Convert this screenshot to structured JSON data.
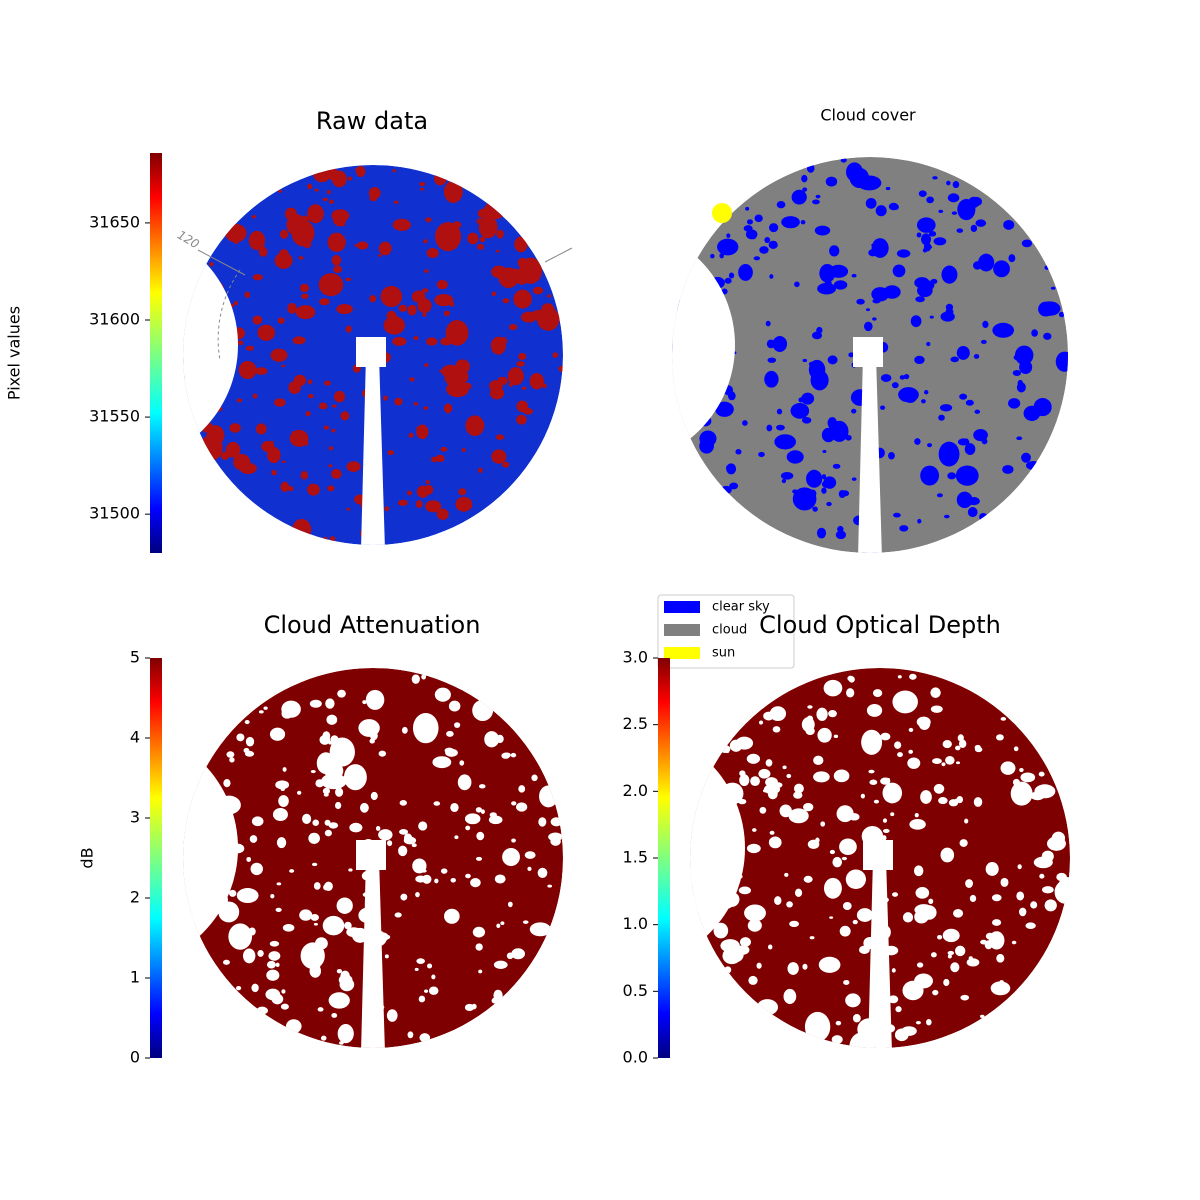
{
  "chart_data": [
    {
      "type": "image",
      "title": "Raw data",
      "colormap": "jet",
      "ylabel": "Pixel values",
      "ylim": [
        31480,
        31686
      ],
      "yticks": [
        31500,
        31550,
        31600,
        31650
      ],
      "annotations": [
        "120"
      ]
    },
    {
      "type": "image",
      "title": "Cloud cover",
      "series": [
        {
          "name": "clear sky",
          "color": "#0000ff"
        },
        {
          "name": "cloud",
          "color": "#808080"
        },
        {
          "name": "sun",
          "color": "#ffff00"
        }
      ]
    },
    {
      "type": "image",
      "title": "Cloud Attenuation",
      "colormap": "jet",
      "ylabel": "dB",
      "ylim": [
        0,
        5
      ],
      "yticks": [
        0,
        1,
        2,
        3,
        4,
        5
      ]
    },
    {
      "type": "image",
      "title": "Cloud Optical Depth",
      "colormap": "jet",
      "ylim": [
        0,
        3
      ],
      "yticks": [
        {
          "value": 0,
          "label": "0.0"
        },
        {
          "value": 0.5,
          "label": "0.5"
        },
        {
          "value": 1,
          "label": "1.0"
        },
        {
          "value": 1.5,
          "label": "1.5"
        },
        {
          "value": 2,
          "label": "2.0"
        },
        {
          "value": 2.5,
          "label": "2.5"
        },
        {
          "value": 3,
          "label": "3.0"
        }
      ]
    }
  ]
}
